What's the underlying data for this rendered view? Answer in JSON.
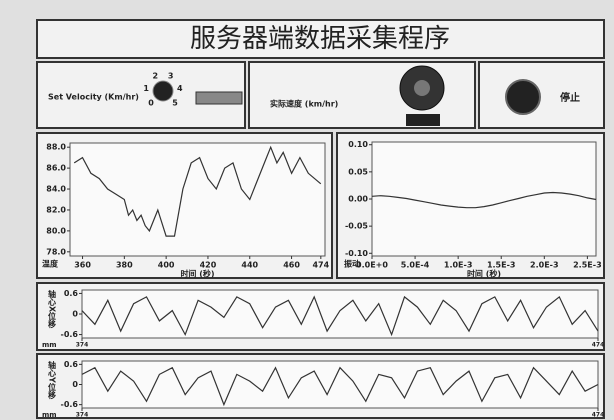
{
  "header": {
    "title": "服务器端数据采集程序"
  },
  "controls": {
    "set_velocity": {
      "label": "Set Velocity (Km/hr)",
      "scale": [
        0,
        1,
        2,
        3,
        4,
        5
      ]
    },
    "actual_velocity": {
      "label": "实际速度 (km/hr)"
    },
    "stop_button": {
      "label": "停止"
    }
  },
  "chart_data": [
    {
      "type": "line",
      "y_label": "温度",
      "x_label": "时间 (秒)",
      "color": "#333333",
      "x": [
        356,
        360,
        364,
        368,
        372,
        376,
        380,
        382,
        384,
        386,
        388,
        390,
        392,
        396,
        400,
        404,
        408,
        412,
        416,
        420,
        424,
        428,
        432,
        436,
        440,
        444,
        448,
        450,
        453,
        456,
        460,
        464,
        468,
        474
      ],
      "values": [
        86.5,
        87.0,
        85.5,
        85.0,
        84.0,
        83.5,
        83.0,
        81.5,
        82.0,
        81.0,
        81.5,
        80.5,
        80.0,
        82.0,
        79.5,
        79.5,
        84.0,
        86.5,
        87.0,
        85.0,
        84.0,
        86.0,
        86.5,
        84.0,
        83.0,
        85.0,
        87.0,
        88.0,
        86.5,
        87.5,
        85.5,
        87.0,
        85.5,
        84.5
      ],
      "xlim": [
        354,
        476
      ],
      "xticks": [
        360,
        380,
        400,
        420,
        440,
        460,
        474
      ],
      "ylim": [
        77.6,
        88.4
      ],
      "yticks": [
        {
          "value": 78,
          "label": "78.0"
        },
        {
          "value": 80,
          "label": "80.0"
        },
        {
          "value": 82,
          "label": "82.0"
        },
        {
          "value": 84,
          "label": "84.0"
        },
        {
          "value": 86,
          "label": "86.0"
        },
        {
          "value": 88,
          "label": "88.0"
        }
      ]
    },
    {
      "type": "line",
      "y_label": "振动",
      "x_label": "时间 (秒)",
      "color": "#333333",
      "x": [
        0,
        0.0001,
        0.0002,
        0.0003,
        0.0004,
        0.0005,
        0.0006,
        0.0007,
        0.0008,
        0.0009,
        0.001,
        0.0011,
        0.0012,
        0.0013,
        0.0014,
        0.0015,
        0.0016,
        0.0017,
        0.0018,
        0.0019,
        0.002,
        0.0021,
        0.0022,
        0.0023,
        0.0024,
        0.0025,
        0.0026
      ],
      "values": [
        0.005,
        0.006,
        0.005,
        0.003,
        0.001,
        -0.002,
        -0.005,
        -0.008,
        -0.011,
        -0.013,
        -0.015,
        -0.016,
        -0.016,
        -0.014,
        -0.011,
        -0.007,
        -0.003,
        0.001,
        0.005,
        0.008,
        0.011,
        0.012,
        0.011,
        0.009,
        0.006,
        0.002,
        -0.001
      ],
      "xlim": [
        0,
        0.0026
      ],
      "xticks": [
        {
          "value": 0,
          "label": "0.0E+0"
        },
        {
          "value": 0.0005,
          "label": "5.0E-4"
        },
        {
          "value": 0.001,
          "label": "1.0E-3"
        },
        {
          "value": 0.0015,
          "label": "1.5E-3"
        },
        {
          "value": 0.002,
          "label": "2.0E-3"
        },
        {
          "value": 0.0025,
          "label": "2.5E-3"
        }
      ],
      "ylim": [
        -0.105,
        0.105
      ],
      "yticks": [
        {
          "value": -0.1,
          "label": "-0.10"
        },
        {
          "value": -0.05,
          "label": "-0.05"
        },
        {
          "value": 0,
          "label": "0.00"
        },
        {
          "value": 0.05,
          "label": "0.05"
        },
        {
          "value": 0.1,
          "label": "0.10"
        }
      ]
    },
    {
      "type": "line",
      "y_label": "轴心X位移",
      "y_unit": "mm",
      "color": "#333333",
      "x": [
        374,
        376.5,
        379,
        381.5,
        384,
        386.5,
        389,
        391.5,
        394,
        396.5,
        399,
        401.5,
        404,
        406.5,
        409,
        411.5,
        414,
        416.5,
        419,
        421.5,
        424,
        426.5,
        429,
        431.5,
        434,
        436.5,
        439,
        441.5,
        444,
        446.5,
        449,
        451.5,
        454,
        456.5,
        459,
        461.5,
        464,
        466.5,
        469,
        471.5,
        474
      ],
      "values": [
        0.1,
        -0.3,
        0.4,
        -0.5,
        0.3,
        0.5,
        -0.2,
        0.1,
        -0.6,
        0.4,
        0.2,
        -0.1,
        0.5,
        0.3,
        -0.4,
        0.2,
        0.4,
        -0.3,
        0.5,
        -0.5,
        0.1,
        0.4,
        -0.2,
        0.3,
        -0.6,
        0.5,
        0.2,
        -0.3,
        0.4,
        0.1,
        -0.5,
        0.3,
        0.5,
        -0.2,
        0.4,
        -0.4,
        0.2,
        0.5,
        -0.3,
        0.1,
        -0.5
      ],
      "xlim": [
        374,
        474
      ],
      "xticks": [
        374,
        474
      ],
      "ylim": [
        -0.7,
        0.7
      ],
      "yticks": [
        -0.6,
        0,
        0.6
      ]
    },
    {
      "type": "line",
      "y_label": "轴心Y位移",
      "y_unit": "mm",
      "color": "#333333",
      "x": [
        374,
        376.5,
        379,
        381.5,
        384,
        386.5,
        389,
        391.5,
        394,
        396.5,
        399,
        401.5,
        404,
        406.5,
        409,
        411.5,
        414,
        416.5,
        419,
        421.5,
        424,
        426.5,
        429,
        431.5,
        434,
        436.5,
        439,
        441.5,
        444,
        446.5,
        449,
        451.5,
        454,
        456.5,
        459,
        461.5,
        464,
        466.5,
        469,
        471.5,
        474
      ],
      "values": [
        0.3,
        0.5,
        -0.2,
        0.4,
        0.1,
        -0.5,
        0.3,
        0.5,
        -0.3,
        0.2,
        0.4,
        -0.6,
        0.3,
        0.1,
        -0.2,
        0.5,
        -0.4,
        0.2,
        0.4,
        -0.3,
        0.5,
        0.1,
        -0.5,
        0.3,
        0.2,
        -0.4,
        0.4,
        0.5,
        -0.3,
        0.1,
        0.4,
        -0.5,
        0.2,
        0.3,
        -0.4,
        0.5,
        0.1,
        -0.3,
        0.4,
        -0.2,
        0.0
      ],
      "xlim": [
        374,
        474
      ],
      "xticks": [
        374,
        474
      ],
      "ylim": [
        -0.7,
        0.7
      ],
      "yticks": [
        -0.6,
        0,
        0.6
      ]
    }
  ]
}
